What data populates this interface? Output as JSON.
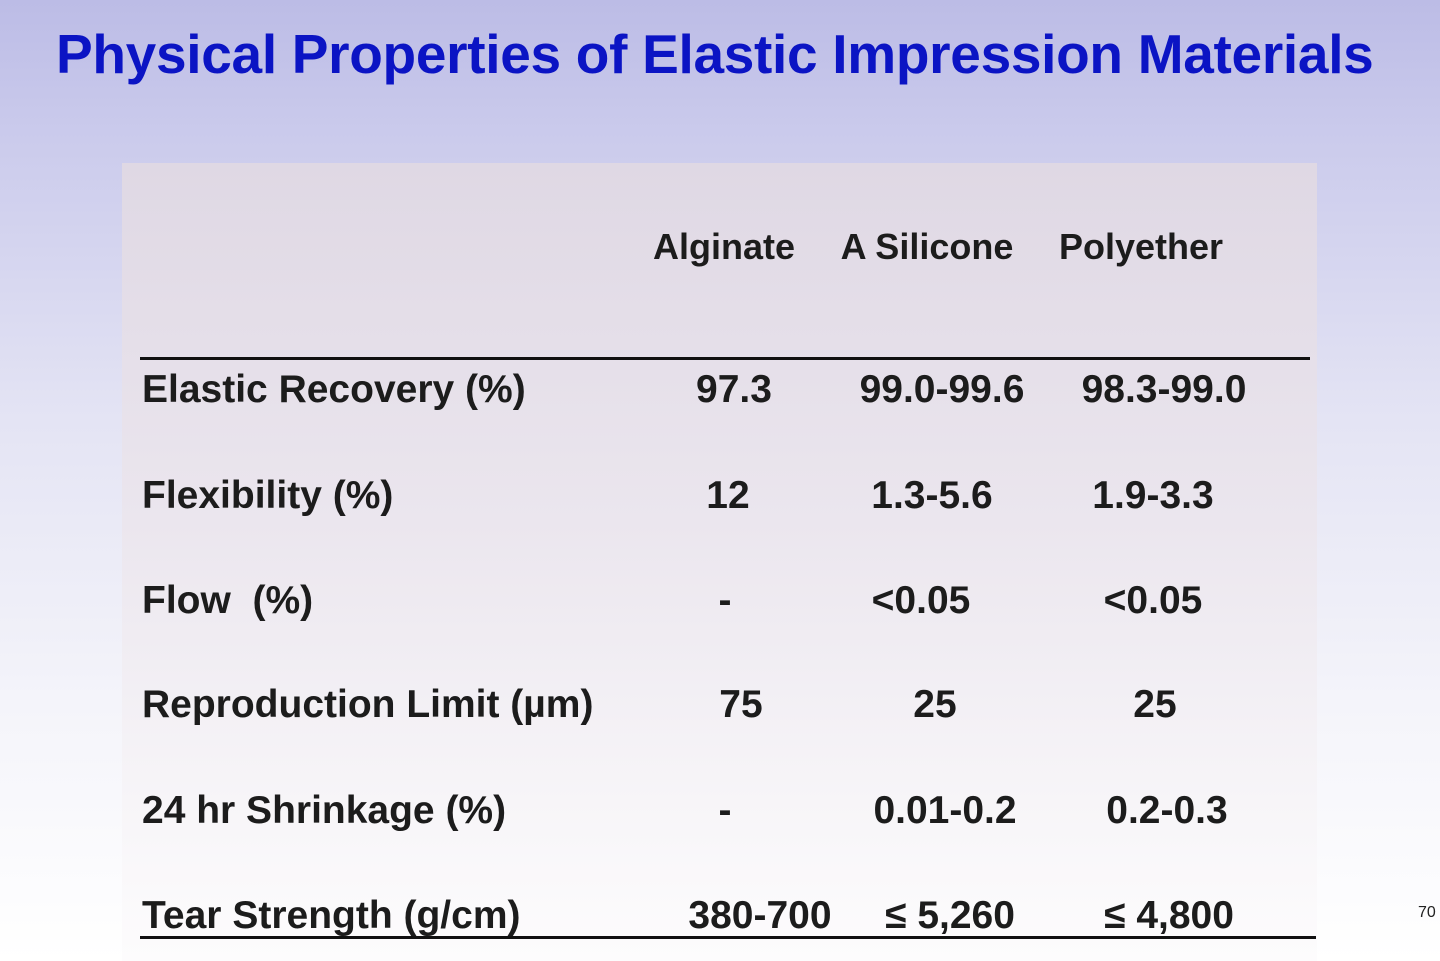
{
  "slide": {
    "title": "Physical Properties of Elastic Impression Materials",
    "page_number": "70"
  },
  "table": {
    "columns": [
      "Alginate",
      "A Silicone",
      "Polyether"
    ],
    "rows": [
      {
        "label": "Elastic Recovery (%)",
        "values": [
          "97.3",
          "99.0-99.6",
          "98.3-99.0"
        ]
      },
      {
        "label": "Flexibility (%)",
        "values": [
          "12",
          "1.3-5.6",
          "1.9-3.3"
        ]
      },
      {
        "label": "Flow  (%)",
        "values": [
          "-",
          "<0.05",
          "<0.05"
        ]
      },
      {
        "label": "Reproduction Limit (µm)",
        "values": [
          "75",
          "25",
          "25"
        ]
      },
      {
        "label": "24 hr Shrinkage (%)",
        "values": [
          "-",
          "0.01-0.2",
          "0.2-0.3"
        ]
      },
      {
        "label": "Tear Strength (g/cm)",
        "values": [
          "380-700",
          "≤ 5,260",
          "≤ 4,800"
        ]
      }
    ]
  }
}
